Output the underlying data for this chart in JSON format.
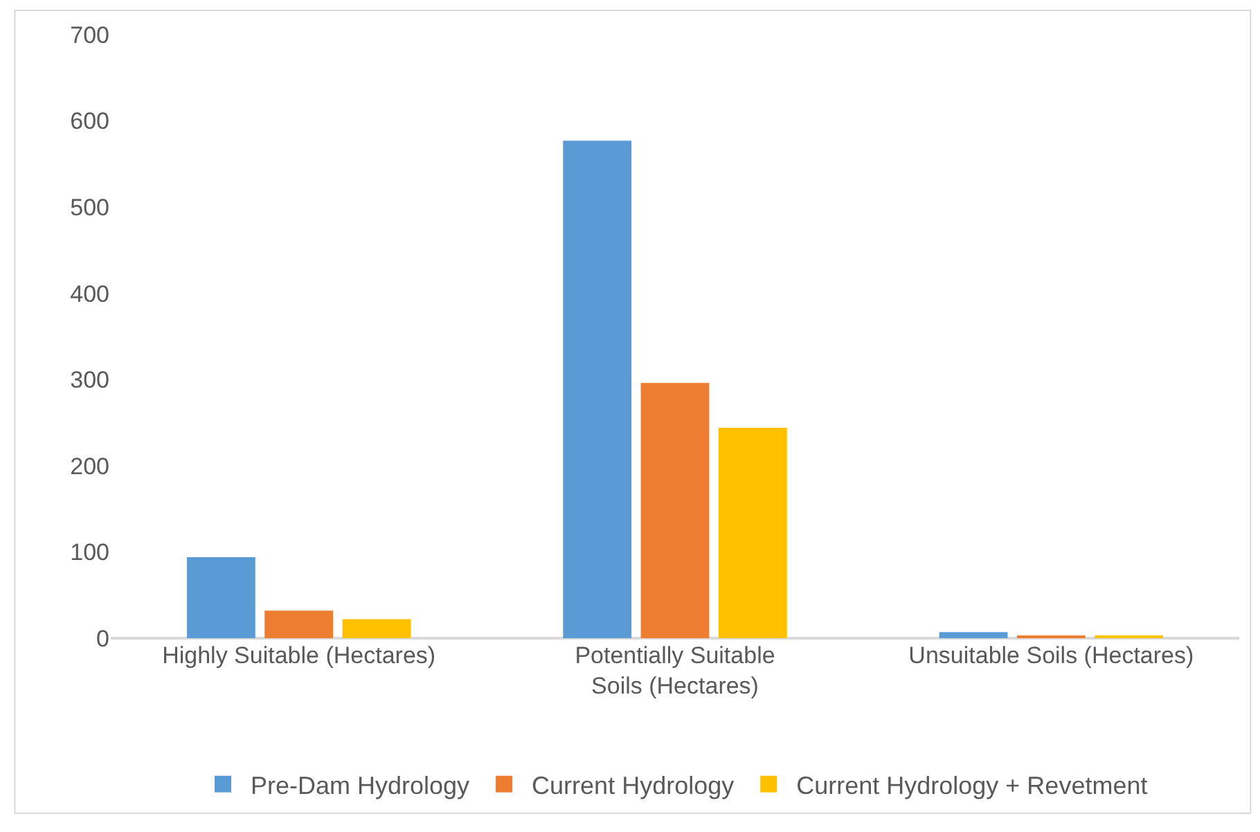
{
  "chart_data": {
    "type": "bar",
    "categories": [
      "Highly Suitable (Hectares)",
      "Potentially Suitable Soils (Hectares)",
      "Unsuitable Soils (Hectares)"
    ],
    "series": [
      {
        "name": "Pre-Dam Hydrology",
        "color": "#5b9bd5",
        "values": [
          94,
          577,
          7
        ]
      },
      {
        "name": "Current Hydrology",
        "color": "#ed7d31",
        "values": [
          32,
          296,
          3
        ]
      },
      {
        "name": "Current Hydrology + Revetment",
        "color": "#ffc000",
        "values": [
          22,
          244,
          3
        ]
      }
    ],
    "ylim": [
      0,
      700
    ],
    "yticks": [
      0,
      100,
      200,
      300,
      400,
      500,
      600,
      700
    ],
    "grid": false,
    "legend": "bottom"
  }
}
